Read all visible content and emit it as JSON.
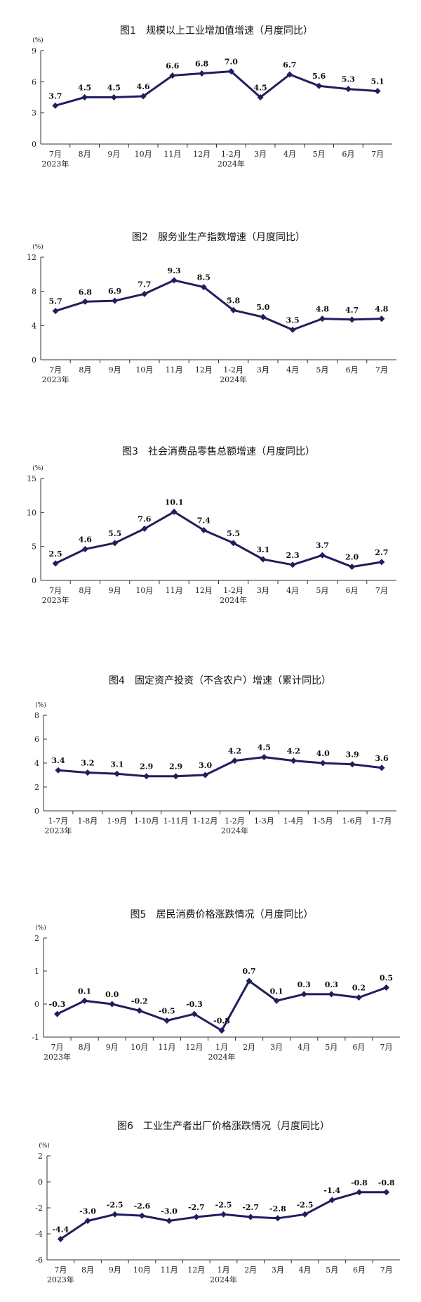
{
  "chart_data": [
    {
      "type": "line",
      "title": "图1　规模以上工业增加值增速（月度同比）",
      "unit": "(%)",
      "yticks": [
        0,
        3,
        6,
        9
      ],
      "ylim": [
        0,
        9
      ],
      "categories": [
        "7月",
        "8月",
        "9月",
        "10月",
        "11月",
        "12月",
        "1-2月",
        "3月",
        "4月",
        "5月",
        "6月",
        "7月"
      ],
      "year_labels": [
        {
          "index": 0,
          "text": "2023年"
        },
        {
          "index": 6,
          "text": "2024年"
        }
      ],
      "values": [
        3.7,
        4.5,
        4.5,
        4.6,
        6.6,
        6.8,
        7.0,
        4.5,
        6.7,
        5.6,
        5.3,
        5.1
      ],
      "labels": [
        "3.7",
        "4.5",
        "4.5",
        "4.6",
        "6.6",
        "6.8",
        "7.0",
        "4.5",
        "6.7",
        "5.6",
        "5.3",
        "5.1"
      ],
      "grid": false,
      "line_color": "#1f1f5e"
    },
    {
      "type": "line",
      "title": "图2　服务业生产指数增速（月度同比）",
      "unit": "(%)",
      "yticks": [
        0,
        4,
        8,
        12
      ],
      "ylim": [
        0,
        12
      ],
      "categories": [
        "7月",
        "8月",
        "9月",
        "10月",
        "11月",
        "12月",
        "1-2月",
        "3月",
        "4月",
        "5月",
        "6月",
        "7月"
      ],
      "year_labels": [
        {
          "index": 0,
          "text": "2023年"
        },
        {
          "index": 6,
          "text": "2024年"
        }
      ],
      "values": [
        5.7,
        6.8,
        6.9,
        7.7,
        9.3,
        8.5,
        5.8,
        5.0,
        3.5,
        4.8,
        4.7,
        4.8
      ],
      "labels": [
        "5.7",
        "6.8",
        "6.9",
        "7.7",
        "9.3",
        "8.5",
        "5.8",
        "5.0",
        "3.5",
        "4.8",
        "4.7",
        "4.8"
      ],
      "grid": false,
      "line_color": "#1f1f5e"
    },
    {
      "type": "line",
      "title": "图3　社会消费品零售总额增速（月度同比）",
      "unit": "(%)",
      "yticks": [
        0,
        5,
        10,
        15
      ],
      "ylim": [
        0,
        15
      ],
      "categories": [
        "7月",
        "8月",
        "9月",
        "10月",
        "11月",
        "12月",
        "1-2月",
        "3月",
        "4月",
        "5月",
        "6月",
        "7月"
      ],
      "year_labels": [
        {
          "index": 0,
          "text": "2023年"
        },
        {
          "index": 6,
          "text": "2024年"
        }
      ],
      "values": [
        2.5,
        4.6,
        5.5,
        7.6,
        10.1,
        7.4,
        5.5,
        3.1,
        2.3,
        3.7,
        2.0,
        2.7
      ],
      "labels": [
        "2.5",
        "4.6",
        "5.5",
        "7.6",
        "10.1",
        "7.4",
        "5.5",
        "3.1",
        "2.3",
        "3.7",
        "2.0",
        "2.7"
      ],
      "grid": false,
      "line_color": "#1f1f5e"
    },
    {
      "type": "line",
      "title": "图4　固定资产投资（不含农户）增速（累计同比）",
      "unit": "(%)",
      "yticks": [
        0,
        2,
        4,
        6,
        8
      ],
      "ylim": [
        0,
        8
      ],
      "categories": [
        "1-7月",
        "1-8月",
        "1-9月",
        "1-10月",
        "1-11月",
        "1-12月",
        "1-2月",
        "1-3月",
        "1-4月",
        "1-5月",
        "1-6月",
        "1-7月"
      ],
      "year_labels": [
        {
          "index": 0,
          "text": "2023年"
        },
        {
          "index": 6,
          "text": "2024年"
        }
      ],
      "values": [
        3.4,
        3.2,
        3.1,
        2.9,
        2.9,
        3.0,
        4.2,
        4.5,
        4.2,
        4.0,
        3.9,
        3.6
      ],
      "labels": [
        "3.4",
        "3.2",
        "3.1",
        "2.9",
        "2.9",
        "3.0",
        "4.2",
        "4.5",
        "4.2",
        "4.0",
        "3.9",
        "3.6"
      ],
      "grid": false,
      "line_color": "#1f1f5e"
    },
    {
      "type": "line",
      "title": "图5　居民消费价格涨跌情况（月度同比）",
      "unit": "(%)",
      "yticks": [
        -1,
        0,
        1,
        2
      ],
      "ylim": [
        -1,
        2
      ],
      "categories": [
        "7月",
        "8月",
        "9月",
        "10月",
        "11月",
        "12月",
        "1月",
        "2月",
        "3月",
        "4月",
        "5月",
        "6月",
        "7月"
      ],
      "year_labels": [
        {
          "index": 0,
          "text": "2023年"
        },
        {
          "index": 6,
          "text": "2024年"
        }
      ],
      "values": [
        -0.3,
        0.1,
        0.0,
        -0.2,
        -0.5,
        -0.3,
        -0.8,
        0.7,
        0.1,
        0.3,
        0.3,
        0.2,
        0.5
      ],
      "labels": [
        "-0.3",
        "0.1",
        "0.0",
        "-0.2",
        "-0.5",
        "-0.3",
        "-0.8",
        "0.7",
        "0.1",
        "0.3",
        "0.3",
        "0.2",
        "0.5"
      ],
      "grid": false,
      "line_color": "#1f1f5e"
    },
    {
      "type": "line",
      "title": "图6　工业生产者出厂价格涨跌情况（月度同比）",
      "unit": "(%)",
      "yticks": [
        -6,
        -4,
        -2,
        0,
        2
      ],
      "ylim": [
        -6,
        2
      ],
      "categories": [
        "7月",
        "8月",
        "9月",
        "10月",
        "11月",
        "12月",
        "1月",
        "2月",
        "3月",
        "4月",
        "5月",
        "6月",
        "7月"
      ],
      "year_labels": [
        {
          "index": 0,
          "text": "2023年"
        },
        {
          "index": 6,
          "text": "2024年"
        }
      ],
      "values": [
        -4.4,
        -3.0,
        -2.5,
        -2.6,
        -3.0,
        -2.7,
        -2.5,
        -2.7,
        -2.8,
        -2.5,
        -1.4,
        -0.8,
        -0.8
      ],
      "labels": [
        "-4.4",
        "-3.0",
        "-2.5",
        "-2.6",
        "-3.0",
        "-2.7",
        "-2.5",
        "-2.7",
        "-2.8",
        "-2.5",
        "-1.4",
        "-0.8",
        "-0.8"
      ],
      "grid": false,
      "line_color": "#1f1f5e"
    }
  ]
}
